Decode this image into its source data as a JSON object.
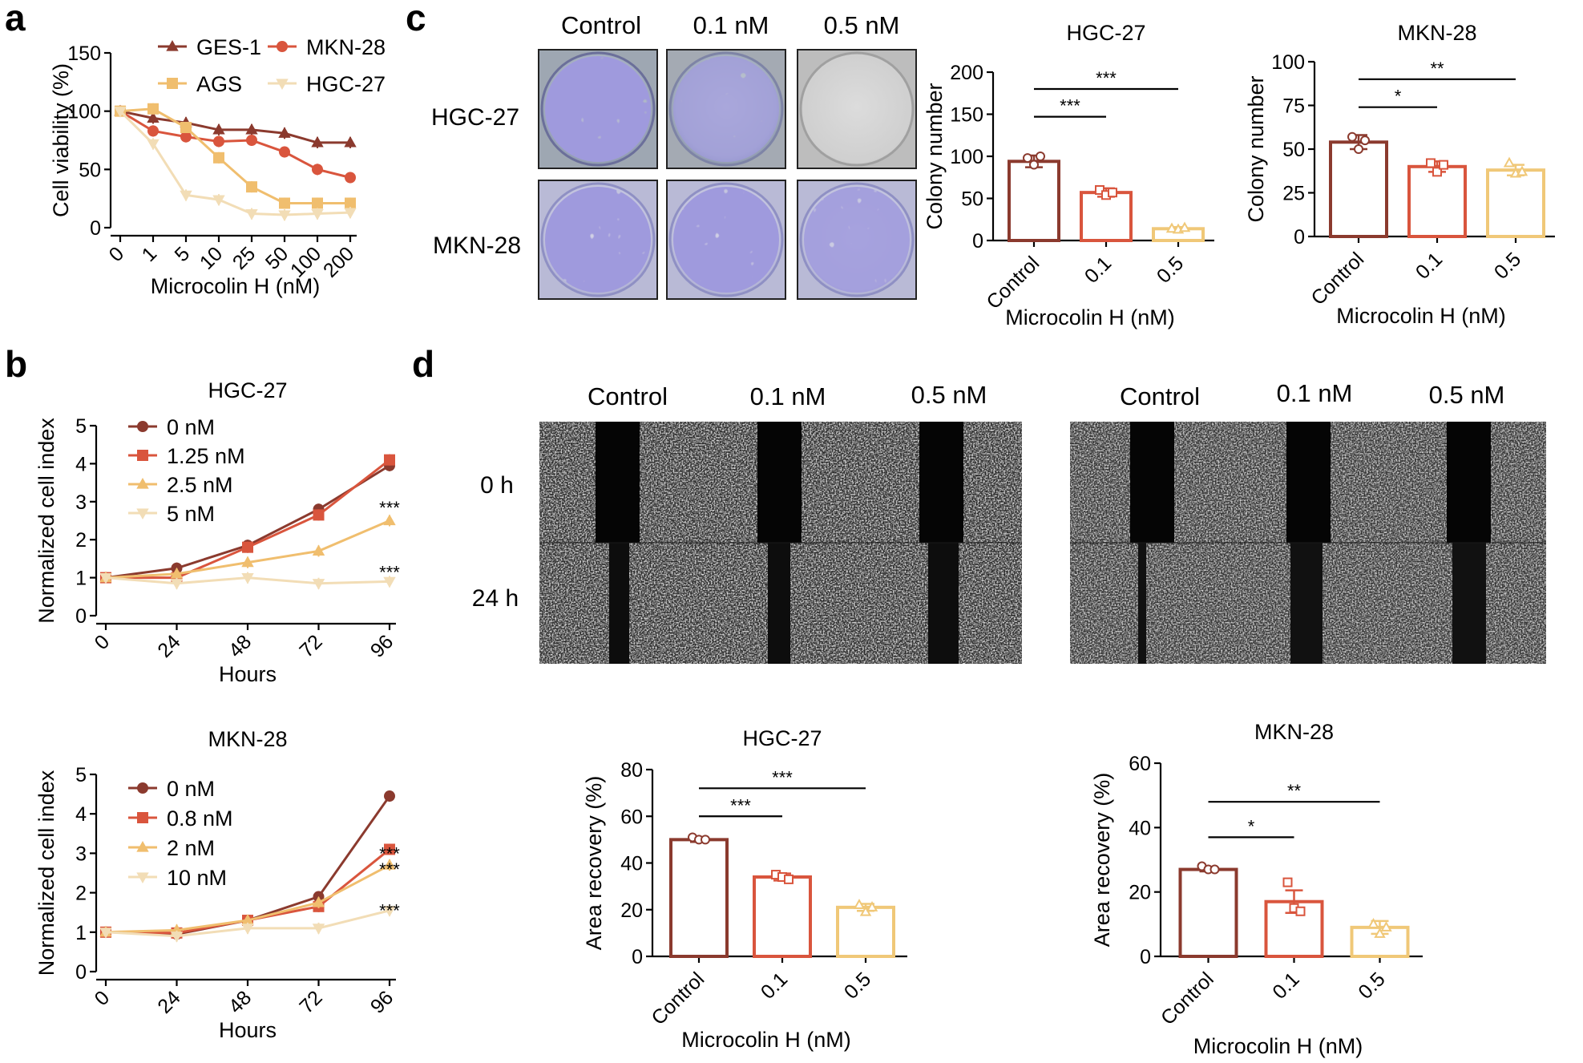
{
  "panel_labels": [
    "a",
    "b",
    "c",
    "d"
  ],
  "colors": {
    "GES1": "#8B3A2E",
    "MKN28": "#D9553D",
    "AGS": "#F0BE6E",
    "HGC27": "#F2DDB6",
    "ctrl": "#8B3A2E",
    "mid": "#D9553D",
    "high": "#F0C878"
  },
  "chart_data": [
    {
      "id": "a",
      "type": "line",
      "xlabel": "Microcolin H (nM)",
      "ylabel": "Cell viability (%)",
      "categories": [
        "0",
        "1",
        "5",
        "10",
        "25",
        "50",
        "100",
        "200"
      ],
      "ylim": [
        0,
        150
      ],
      "yticks": [
        0,
        50,
        100,
        150
      ],
      "series": [
        {
          "name": "GES-1",
          "marker": "tri",
          "color": "#8B3A2E",
          "values": [
            100,
            94,
            90,
            84,
            84,
            81,
            73,
            73
          ]
        },
        {
          "name": "MKN-28",
          "marker": "circle",
          "color": "#D9553D",
          "values": [
            100,
            83,
            78,
            74,
            75,
            65,
            50,
            43
          ]
        },
        {
          "name": "AGS",
          "marker": "square",
          "color": "#F0BE6E",
          "values": [
            100,
            102,
            86,
            60,
            35,
            21,
            21,
            21
          ]
        },
        {
          "name": "HGC-27",
          "marker": "tridown",
          "color": "#F2DDB6",
          "values": [
            100,
            72,
            28,
            24,
            12,
            11,
            12,
            13
          ]
        }
      ]
    },
    {
      "id": "b1",
      "type": "line",
      "title": "HGC-27",
      "xlabel": "Hours",
      "ylabel": "Normalized cell index",
      "x": [
        0,
        24,
        48,
        72,
        96
      ],
      "xticks": [
        "0",
        "24",
        "48",
        "72",
        "96"
      ],
      "ylim": [
        0,
        5
      ],
      "yticks": [
        0,
        1,
        2,
        3,
        4,
        5
      ],
      "series": [
        {
          "name": "0 nM",
          "marker": "circle",
          "color": "#8B3A2E",
          "values": [
            1,
            1.25,
            1.85,
            2.8,
            3.95
          ]
        },
        {
          "name": "1.25 nM",
          "marker": "square",
          "color": "#D9553D",
          "values": [
            1,
            1.0,
            1.8,
            2.65,
            4.1
          ]
        },
        {
          "name": "2.5 nM",
          "marker": "tri",
          "color": "#F0BE6E",
          "values": [
            1,
            1.1,
            1.4,
            1.7,
            2.5
          ]
        },
        {
          "name": "5 nM",
          "marker": "tridown",
          "color": "#F2DDB6",
          "values": [
            1,
            0.85,
            1.0,
            0.85,
            0.9
          ]
        }
      ],
      "annotations": [
        {
          "text": "***",
          "x": 96,
          "y": 2.85
        },
        {
          "text": "***",
          "x": 96,
          "y": 1.15
        }
      ]
    },
    {
      "id": "b2",
      "type": "line",
      "title": "MKN-28",
      "xlabel": "Hours",
      "ylabel": "Normalized cell index",
      "x": [
        0,
        24,
        48,
        72,
        96
      ],
      "xticks": [
        "0",
        "24",
        "48",
        "72",
        "96"
      ],
      "ylim": [
        0,
        5
      ],
      "yticks": [
        0,
        1,
        2,
        3,
        4,
        5
      ],
      "series": [
        {
          "name": "0 nM",
          "marker": "circle",
          "color": "#8B3A2E",
          "values": [
            1,
            0.95,
            1.3,
            1.9,
            4.45
          ]
        },
        {
          "name": "0.8 nM",
          "marker": "square",
          "color": "#D9553D",
          "values": [
            1,
            0.98,
            1.3,
            1.65,
            3.1
          ]
        },
        {
          "name": "2 nM",
          "marker": "tri",
          "color": "#F0BE6E",
          "values": [
            1,
            1.05,
            1.3,
            1.75,
            2.7
          ]
        },
        {
          "name": "10 nM",
          "marker": "tridown",
          "color": "#F2DDB6",
          "values": [
            1,
            0.9,
            1.1,
            1.1,
            1.55
          ]
        }
      ],
      "annotations": [
        {
          "text": "***",
          "x": 96,
          "y": 3.0
        },
        {
          "text": "***",
          "x": 96,
          "y": 2.6
        },
        {
          "text": "***",
          "x": 96,
          "y": 1.55
        }
      ]
    },
    {
      "id": "c1",
      "type": "bar",
      "title": "HGC-27",
      "xlabel": "Microcolin H (nM)",
      "ylabel": "Colony number",
      "categories": [
        "Control",
        "0.1",
        "0.5"
      ],
      "values": [
        94,
        57,
        14
      ],
      "errors": [
        7,
        5,
        2
      ],
      "points": [
        [
          98,
          90,
          100
        ],
        [
          60,
          54,
          57
        ],
        [
          14,
          13,
          15
        ]
      ],
      "ylim": [
        0,
        200
      ],
      "yticks": [
        0,
        50,
        100,
        150,
        200
      ],
      "brackets": [
        {
          "from": 0,
          "to": 1,
          "y": 147,
          "text": "***"
        },
        {
          "from": 0,
          "to": 2,
          "y": 180,
          "text": "***"
        }
      ]
    },
    {
      "id": "c2",
      "type": "bar",
      "title": "MKN-28",
      "xlabel": "Microcolin H (nM)",
      "ylabel": "Colony number",
      "categories": [
        "Control",
        "0.1",
        "0.5"
      ],
      "values": [
        54,
        40,
        38
      ],
      "errors": [
        4,
        3,
        3
      ],
      "points": [
        [
          57,
          50,
          55
        ],
        [
          42,
          37,
          41
        ],
        [
          42,
          36,
          37
        ]
      ],
      "ylim": [
        0,
        100
      ],
      "yticks": [
        0,
        25,
        50,
        75,
        100
      ],
      "brackets": [
        {
          "from": 0,
          "to": 1,
          "y": 74,
          "text": "*"
        },
        {
          "from": 0,
          "to": 2,
          "y": 90,
          "text": "**"
        }
      ]
    },
    {
      "id": "d1",
      "type": "bar",
      "title": "HGC-27",
      "xlabel": "Microcolin H (nM)",
      "ylabel": "Area recovery (%)",
      "categories": [
        "Control",
        "0.1",
        "0.5"
      ],
      "values": [
        50,
        34,
        21
      ],
      "errors": [
        1,
        1.5,
        1.5
      ],
      "points": [
        [
          51,
          50,
          50
        ],
        [
          35,
          34,
          33
        ],
        [
          22,
          19,
          21
        ]
      ],
      "ylim": [
        0,
        80
      ],
      "yticks": [
        0,
        20,
        40,
        60,
        80
      ],
      "brackets": [
        {
          "from": 0,
          "to": 1,
          "y": 60,
          "text": "***"
        },
        {
          "from": 0,
          "to": 2,
          "y": 72,
          "text": "***"
        }
      ]
    },
    {
      "id": "d2",
      "type": "bar",
      "title": "MKN-28",
      "xlabel": "Microcolin H (nM)",
      "ylabel": "Area recovery (%)",
      "categories": [
        "Control",
        "0.1",
        "0.5"
      ],
      "values": [
        27,
        17,
        9
      ],
      "errors": [
        0.6,
        3.5,
        2
      ],
      "points": [
        [
          28,
          27,
          27
        ],
        [
          23,
          15,
          14
        ],
        [
          10,
          7,
          9
        ]
      ],
      "ylim": [
        0,
        60
      ],
      "yticks": [
        0,
        20,
        40,
        60
      ],
      "brackets": [
        {
          "from": 0,
          "to": 1,
          "y": 37,
          "text": "*"
        },
        {
          "from": 0,
          "to": 2,
          "y": 48,
          "text": "**"
        }
      ]
    }
  ],
  "panel_c_images": {
    "headers": [
      "Control",
      "0.1 nM",
      "0.5 nM"
    ],
    "rows": [
      "HGC-27",
      "MKN-28"
    ]
  },
  "panel_d_images": {
    "headers": [
      "Control",
      "0.1 nM",
      "0.5 nM"
    ],
    "rows": [
      "0 h",
      "24 h"
    ]
  }
}
